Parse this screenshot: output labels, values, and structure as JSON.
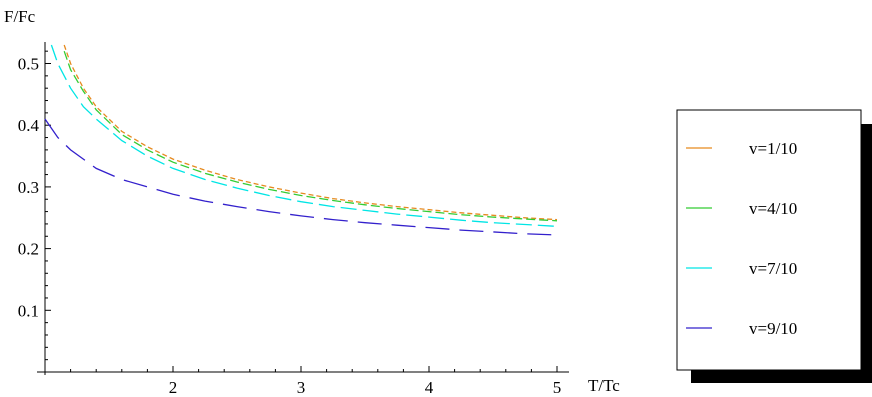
{
  "chart_data": {
    "type": "line",
    "title": "",
    "xlabel": "T/Tc",
    "ylabel": "F/Fc",
    "xlim": [
      1,
      5
    ],
    "ylim": [
      0,
      0.53
    ],
    "xticks": [
      2,
      3,
      4,
      5
    ],
    "yticks": [
      0.1,
      0.2,
      0.3,
      0.4,
      0.5
    ],
    "grid": false,
    "legend_position": "right",
    "series": [
      {
        "name": "v=1/10",
        "color": "#e68a1f",
        "dash": "short",
        "x": [
          1.15,
          1.2,
          1.3,
          1.4,
          1.6,
          1.8,
          2.0,
          2.25,
          2.5,
          2.75,
          3.0,
          3.25,
          3.5,
          3.75,
          4.0,
          4.25,
          4.5,
          4.75,
          5.0
        ],
        "y": [
          0.53,
          0.5,
          0.46,
          0.43,
          0.39,
          0.365,
          0.345,
          0.327,
          0.312,
          0.3,
          0.29,
          0.281,
          0.274,
          0.268,
          0.263,
          0.258,
          0.254,
          0.25,
          0.247
        ]
      },
      {
        "name": "v=4/10",
        "color": "#33cc33",
        "dash": "medium",
        "x": [
          1.15,
          1.2,
          1.3,
          1.4,
          1.6,
          1.8,
          2.0,
          2.25,
          2.5,
          2.75,
          3.0,
          3.25,
          3.5,
          3.75,
          4.0,
          4.25,
          4.5,
          4.75,
          5.0
        ],
        "y": [
          0.52,
          0.49,
          0.455,
          0.425,
          0.385,
          0.36,
          0.34,
          0.322,
          0.308,
          0.296,
          0.286,
          0.278,
          0.271,
          0.265,
          0.26,
          0.255,
          0.251,
          0.248,
          0.245
        ]
      },
      {
        "name": "v=7/10",
        "color": "#00e5e5",
        "dash": "long",
        "x": [
          1.05,
          1.1,
          1.2,
          1.3,
          1.4,
          1.6,
          1.8,
          2.0,
          2.25,
          2.5,
          2.75,
          3.0,
          3.25,
          3.5,
          3.75,
          4.0,
          4.25,
          4.5,
          4.75,
          5.0
        ],
        "y": [
          0.53,
          0.5,
          0.46,
          0.43,
          0.41,
          0.375,
          0.35,
          0.33,
          0.312,
          0.298,
          0.286,
          0.276,
          0.268,
          0.262,
          0.256,
          0.251,
          0.246,
          0.242,
          0.239,
          0.236
        ]
      },
      {
        "name": "v=9/10",
        "color": "#3320cc",
        "dash": "longest",
        "x": [
          1.0,
          1.1,
          1.2,
          1.4,
          1.6,
          1.8,
          2.0,
          2.25,
          2.5,
          2.75,
          3.0,
          3.25,
          3.5,
          3.75,
          4.0,
          4.25,
          4.5,
          4.75,
          5.0
        ],
        "y": [
          0.41,
          0.38,
          0.36,
          0.33,
          0.312,
          0.3,
          0.288,
          0.277,
          0.268,
          0.26,
          0.253,
          0.247,
          0.242,
          0.238,
          0.234,
          0.23,
          0.227,
          0.224,
          0.222
        ]
      }
    ]
  }
}
